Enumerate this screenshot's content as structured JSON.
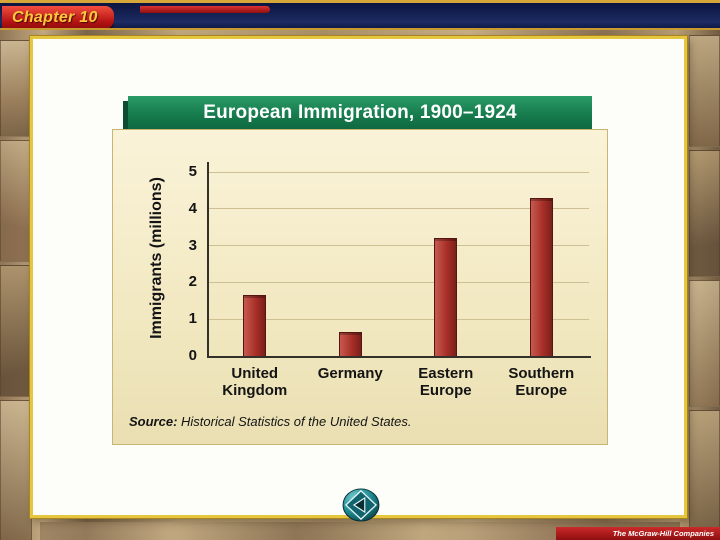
{
  "header": {
    "chapter_label": "Chapter 10"
  },
  "footer": {
    "brand": "The McGraw-Hill Companies"
  },
  "nav": {
    "back_button_icon": "back-arrow"
  },
  "chart_data": {
    "type": "bar",
    "title": "European Immigration, 1900–1924",
    "categories": [
      "United Kingdom",
      "Germany",
      "Eastern Europe",
      "Southern Europe"
    ],
    "values": [
      1.65,
      0.65,
      3.2,
      4.3
    ],
    "ylabel": "Immigrants (millions)",
    "xlabel": "",
    "yticks": [
      0,
      1,
      2,
      3,
      4,
      5
    ],
    "ylim": [
      0,
      5
    ],
    "grid": true,
    "legend": "none",
    "bar_color": "#a93028",
    "source_label": "Source:",
    "source_text": " Historical Statistics of the United States."
  }
}
